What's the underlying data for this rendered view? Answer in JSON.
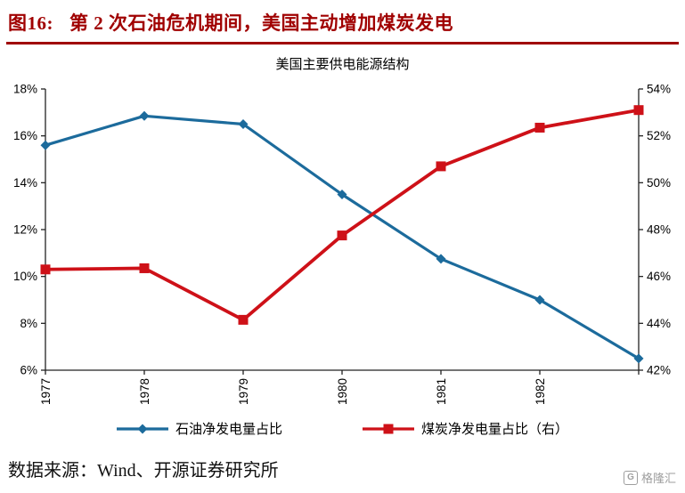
{
  "header": {
    "figure_label": "图16:",
    "title": "第 2 次石油危机期间，美国主动增加煤炭发电"
  },
  "chart_data": {
    "type": "line",
    "title": "美国主要供电能源结构",
    "x": [
      "1977",
      "1978",
      "1979",
      "1980",
      "1981",
      "1982",
      "1983"
    ],
    "x_tick_labels": [
      "1977",
      "1978",
      "1979",
      "1980",
      "1981",
      "1982"
    ],
    "series": [
      {
        "name": "石油净发电量占比",
        "axis": "left",
        "color": "#1C6B9C",
        "marker": "diamond",
        "values": [
          15.6,
          16.85,
          16.5,
          13.5,
          10.75,
          9.0,
          6.5
        ]
      },
      {
        "name": "煤炭净发电量占比（右）",
        "axis": "right",
        "color": "#CE1118",
        "marker": "square",
        "values": [
          46.3,
          46.35,
          44.15,
          47.75,
          50.7,
          52.35,
          53.1
        ]
      }
    ],
    "left_axis": {
      "min": 6,
      "max": 18,
      "step": 2,
      "tick_labels": [
        "6%",
        "8%",
        "10%",
        "12%",
        "14%",
        "16%",
        "18%"
      ]
    },
    "right_axis": {
      "min": 42,
      "max": 54,
      "step": 2,
      "tick_labels": [
        "42%",
        "44%",
        "46%",
        "48%",
        "50%",
        "52%",
        "54%"
      ]
    },
    "legend_position": "bottom",
    "grid": false
  },
  "footer": {
    "source": "数据来源：Wind、开源证券研究所"
  },
  "watermark": {
    "icon_letter": "G",
    "text": "格隆汇"
  },
  "colors": {
    "header_red": "#A00000",
    "line_blue": "#1C6B9C",
    "line_red": "#CE1118",
    "axis_black": "#222222",
    "watermark_gray": "#9E9E9E"
  }
}
